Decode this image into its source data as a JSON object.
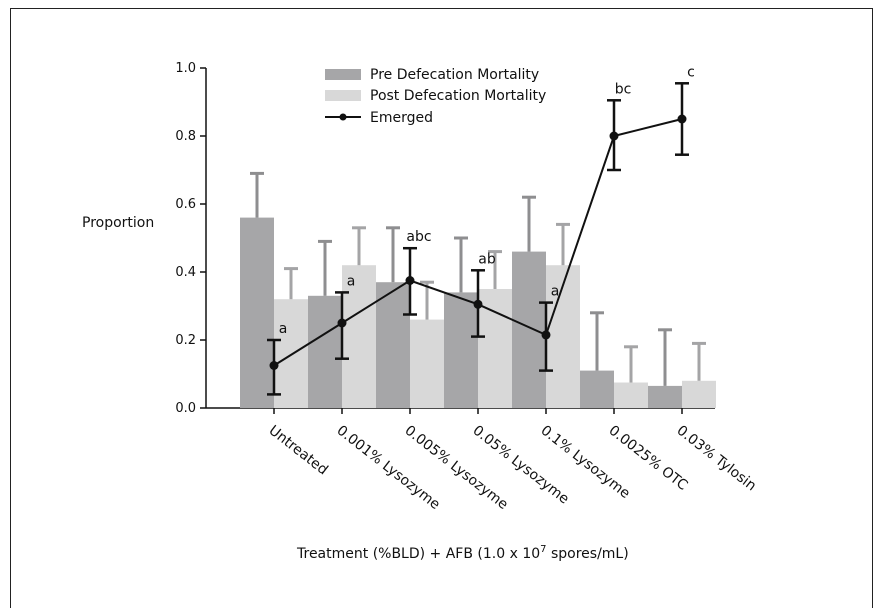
{
  "chart_data": {
    "type": "bar",
    "title": "",
    "ylabel": "Proportion",
    "xlabel_main": "Treatment (%BLD) + AFB (1.0 x 10",
    "xlabel_sup": "7",
    "xlabel_tail": " spores/mL)",
    "ylim": [
      0,
      1.0
    ],
    "yticks": [
      "0.0",
      "0.2",
      "0.4",
      "0.6",
      "0.8",
      "1.0"
    ],
    "categories": [
      "Untreated",
      "0.001% Lysozyme",
      "0.005% Lysozyme",
      "0.05% Lysozyme",
      "0.1% Lysozyme",
      "0.0025% OTC",
      "0.03% Tylosin"
    ],
    "series": [
      {
        "name": "Pre Defecation Mortality",
        "kind": "bar",
        "color": "#a6a6a8",
        "values": [
          0.56,
          0.33,
          0.37,
          0.34,
          0.46,
          0.11,
          0.065
        ],
        "err_upper": [
          0.69,
          0.49,
          0.53,
          0.5,
          0.62,
          0.28,
          0.23
        ]
      },
      {
        "name": "Post Defecation Mortality",
        "kind": "bar",
        "color": "#d8d8d8",
        "values": [
          0.32,
          0.42,
          0.26,
          0.35,
          0.42,
          0.075,
          0.08
        ],
        "err_upper": [
          0.41,
          0.53,
          0.37,
          0.46,
          0.54,
          0.18,
          0.19
        ]
      },
      {
        "name": "Emerged",
        "kind": "line",
        "color": "#111111",
        "values": [
          0.125,
          0.25,
          0.375,
          0.305,
          0.215,
          0.8,
          0.85
        ],
        "err_low": [
          0.04,
          0.145,
          0.275,
          0.21,
          0.11,
          0.7,
          0.745
        ],
        "err_high": [
          0.2,
          0.34,
          0.47,
          0.405,
          0.31,
          0.905,
          0.955
        ],
        "sig_labels": [
          "a",
          "a",
          "abc",
          "ab",
          "a",
          "bc",
          "c"
        ]
      }
    ],
    "legend": "top-center",
    "grid": false
  }
}
